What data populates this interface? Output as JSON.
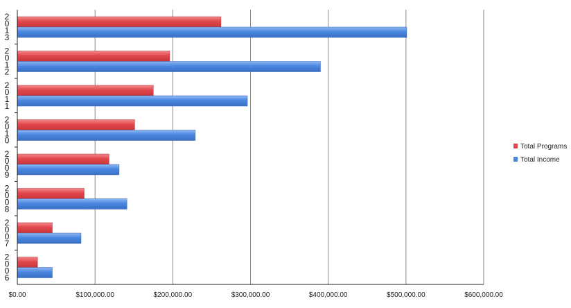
{
  "chart_data": {
    "type": "bar",
    "orientation": "horizontal",
    "categories": [
      "2013",
      "2012",
      "2011",
      "2010",
      "2009",
      "2008",
      "2007",
      "2006"
    ],
    "series": [
      {
        "name": "Total Programs",
        "color": "#e0474c",
        "values": [
          262000,
          196000,
          175000,
          151000,
          118000,
          86000,
          45000,
          26000
        ]
      },
      {
        "name": "Total Income",
        "color": "#4a86e0",
        "values": [
          501000,
          390000,
          296000,
          229000,
          131000,
          141000,
          82000,
          45000
        ]
      }
    ],
    "xlim": [
      0,
      600000
    ],
    "x_ticks": [
      0,
      100000,
      200000,
      300000,
      400000,
      500000,
      600000
    ],
    "x_tick_labels": [
      "$0.00",
      "$100,000.00",
      "$200,000.00",
      "$300,000.00",
      "$400,000.00",
      "$500,000.00",
      "$600,000.00"
    ],
    "title": "",
    "xlabel": "",
    "ylabel": "",
    "grid": "vertical",
    "legend": "right"
  }
}
